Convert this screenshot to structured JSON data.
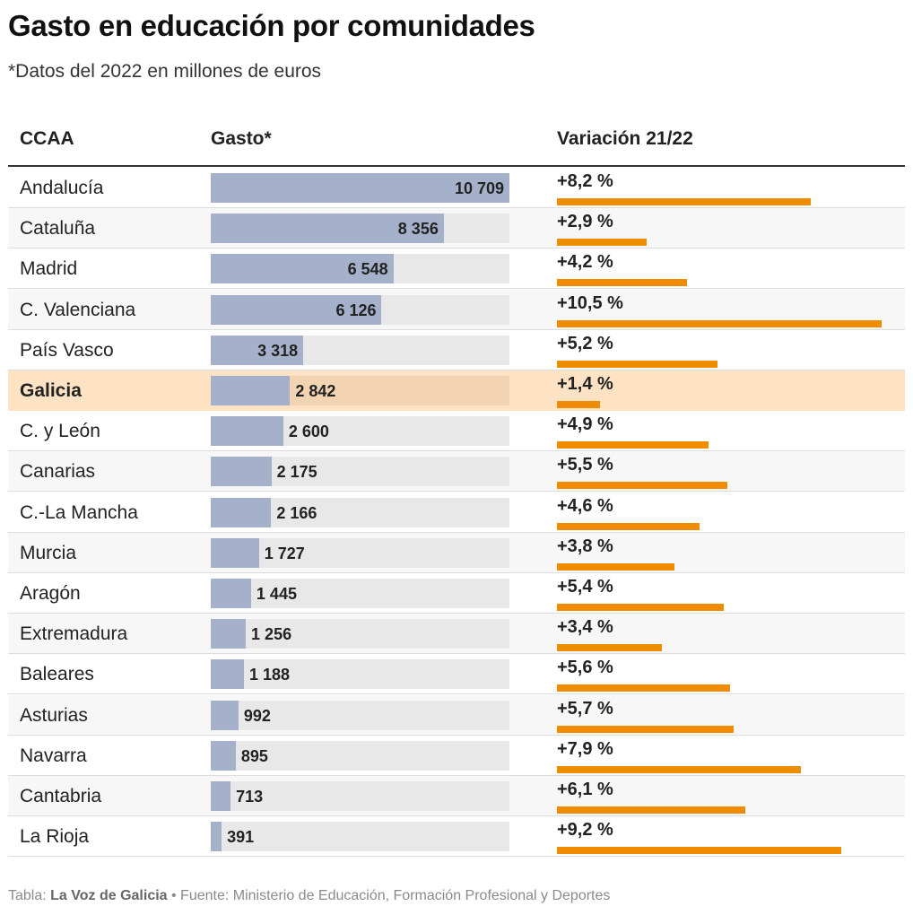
{
  "title": "Gasto en educación por comunidades",
  "subtitle": "*Datos del 2022 en millones de euros",
  "headers": {
    "ccaa": "CCAA",
    "gasto": "Gasto*",
    "variacion": "Variación 21/22"
  },
  "footer": {
    "prefix": "Tabla: ",
    "publisher": "La Voz de Galicia",
    "source": " • Fuente: Ministerio de Educación, Formación Profesional y Deportes"
  },
  "colors": {
    "gasto_bar": "#a5b1cb",
    "variacion_bar": "#f08c00",
    "highlight_row": "#fde3c3"
  },
  "chart_data": {
    "type": "table",
    "title": "Gasto en educación por comunidades",
    "columns": [
      "CCAA",
      "Gasto*",
      "Variación 21/22"
    ],
    "gasto_max": 10709,
    "variacion_max": 10.5,
    "highlight": "Galicia",
    "rows": [
      {
        "ccaa": "Andalucía",
        "gasto": 10709,
        "gasto_label": "10 709",
        "variacion": 8.2,
        "variacion_label": "+8,2 %"
      },
      {
        "ccaa": "Cataluña",
        "gasto": 8356,
        "gasto_label": "8 356",
        "variacion": 2.9,
        "variacion_label": "+2,9 %"
      },
      {
        "ccaa": "Madrid",
        "gasto": 6548,
        "gasto_label": "6 548",
        "variacion": 4.2,
        "variacion_label": "+4,2 %"
      },
      {
        "ccaa": "C. Valenciana",
        "gasto": 6126,
        "gasto_label": "6 126",
        "variacion": 10.5,
        "variacion_label": "+10,5 %"
      },
      {
        "ccaa": "País Vasco",
        "gasto": 3318,
        "gasto_label": "3 318",
        "variacion": 5.2,
        "variacion_label": "+5,2 %"
      },
      {
        "ccaa": "Galicia",
        "gasto": 2842,
        "gasto_label": "2 842",
        "variacion": 1.4,
        "variacion_label": "+1,4 %"
      },
      {
        "ccaa": "C. y León",
        "gasto": 2600,
        "gasto_label": "2 600",
        "variacion": 4.9,
        "variacion_label": "+4,9 %"
      },
      {
        "ccaa": "Canarias",
        "gasto": 2175,
        "gasto_label": "2 175",
        "variacion": 5.5,
        "variacion_label": "+5,5 %"
      },
      {
        "ccaa": "C.-La Mancha",
        "gasto": 2166,
        "gasto_label": "2 166",
        "variacion": 4.6,
        "variacion_label": "+4,6 %"
      },
      {
        "ccaa": "Murcia",
        "gasto": 1727,
        "gasto_label": "1 727",
        "variacion": 3.8,
        "variacion_label": "+3,8 %"
      },
      {
        "ccaa": "Aragón",
        "gasto": 1445,
        "gasto_label": "1 445",
        "variacion": 5.4,
        "variacion_label": "+5,4 %"
      },
      {
        "ccaa": "Extremadura",
        "gasto": 1256,
        "gasto_label": "1 256",
        "variacion": 3.4,
        "variacion_label": "+3,4 %"
      },
      {
        "ccaa": "Baleares",
        "gasto": 1188,
        "gasto_label": "1 188",
        "variacion": 5.6,
        "variacion_label": "+5,6 %"
      },
      {
        "ccaa": "Asturias",
        "gasto": 992,
        "gasto_label": "992",
        "variacion": 5.7,
        "variacion_label": "+5,7 %"
      },
      {
        "ccaa": "Navarra",
        "gasto": 895,
        "gasto_label": "895",
        "variacion": 7.9,
        "variacion_label": "+7,9 %"
      },
      {
        "ccaa": "Cantabria",
        "gasto": 713,
        "gasto_label": "713",
        "variacion": 6.1,
        "variacion_label": "+6,1 %"
      },
      {
        "ccaa": "La Rioja",
        "gasto": 391,
        "gasto_label": "391",
        "variacion": 9.2,
        "variacion_label": "+9,2 %"
      }
    ]
  }
}
